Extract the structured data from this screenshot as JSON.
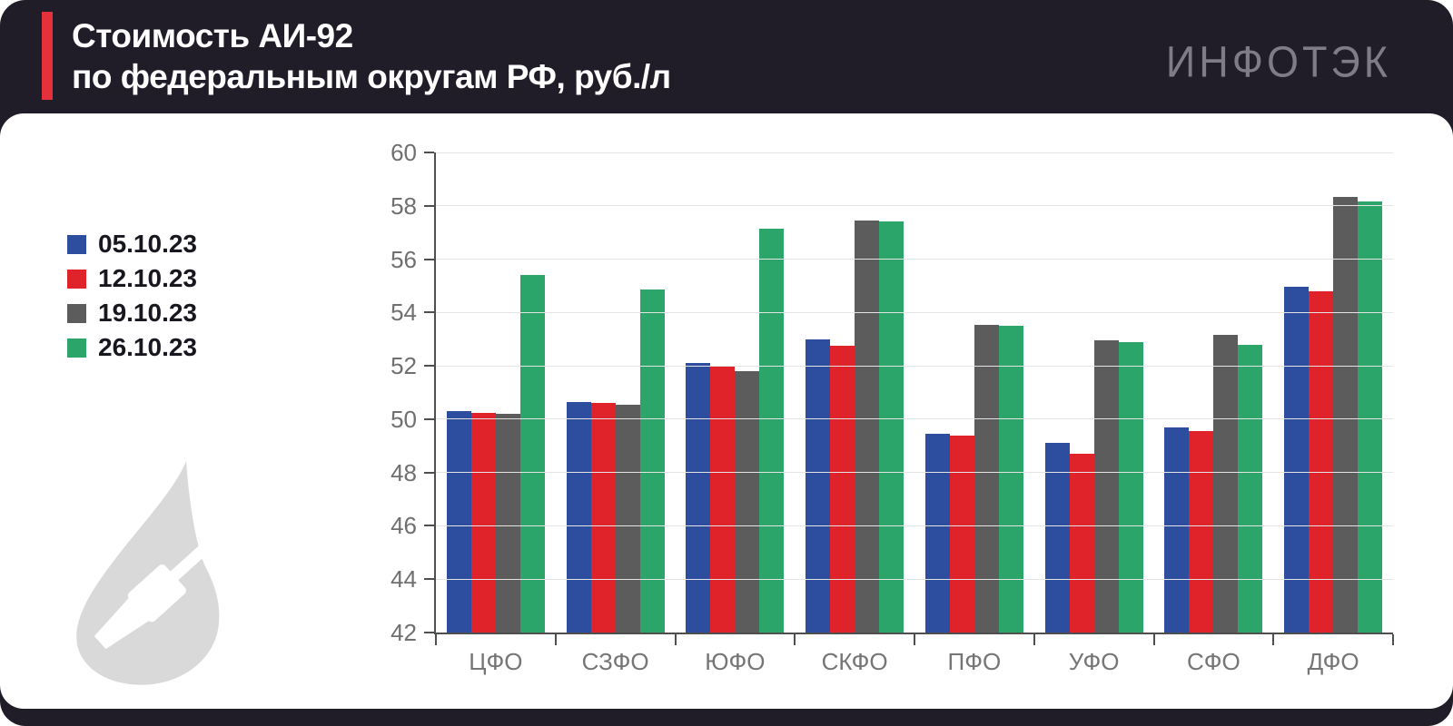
{
  "header": {
    "title_line1": "Стоимость АИ-92",
    "title_line2": "по федеральным округам РФ, руб./л",
    "logo_text": "ИНФОТЭК",
    "accent_color": "#e4313b",
    "background_color": "#201d28",
    "title_color": "#ffffff",
    "logo_color": "#7f7c87"
  },
  "legend": {
    "items": [
      {
        "label": "05.10.23",
        "color": "#2d4d9e"
      },
      {
        "label": "12.10.23",
        "color": "#e0232a"
      },
      {
        "label": "19.10.23",
        "color": "#5d5c5c"
      },
      {
        "label": "26.10.23",
        "color": "#2ba56a"
      }
    ]
  },
  "watermark": {
    "icon": "oil-drop-with-fuel-nozzle-icon",
    "color": "#d9d9d9"
  },
  "chart_data": {
    "type": "bar",
    "title": "Стоимость АИ-92 по федеральным округам РФ, руб./л",
    "xlabel": "",
    "ylabel": "руб./л",
    "categories": [
      "ЦФО",
      "СЗФО",
      "ЮФО",
      "СКФО",
      "ПФО",
      "УФО",
      "СФО",
      "ДФО"
    ],
    "series": [
      {
        "name": "05.10.23",
        "color": "#2d4d9e",
        "values": [
          50.3,
          50.65,
          52.1,
          53.0,
          49.45,
          49.1,
          49.7,
          54.95
        ]
      },
      {
        "name": "12.10.23",
        "color": "#e0232a",
        "values": [
          50.25,
          50.6,
          52.0,
          52.75,
          49.4,
          48.7,
          49.55,
          54.8
        ]
      },
      {
        "name": "19.10.23",
        "color": "#5d5c5c",
        "values": [
          50.2,
          50.55,
          51.8,
          57.45,
          53.55,
          52.95,
          53.15,
          58.35
        ]
      },
      {
        "name": "26.10.23",
        "color": "#2ba56a",
        "values": [
          55.4,
          54.85,
          57.15,
          57.4,
          53.5,
          52.9,
          52.8,
          58.15
        ]
      }
    ],
    "ylim": [
      42,
      60
    ],
    "ytick_step": 2,
    "grid": true,
    "legend_position": "left",
    "axis_color": "#4f4f4f",
    "grid_color": "#e4e4e4",
    "tick_label_color": "#6f6f6f",
    "category_label_color": "#757575"
  }
}
